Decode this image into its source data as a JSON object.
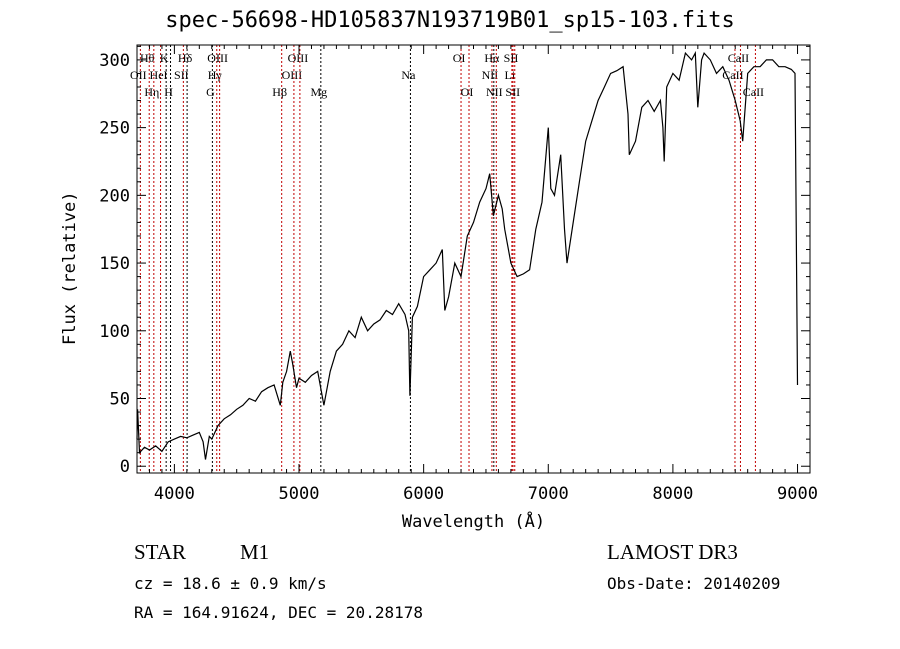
{
  "chart_data": {
    "type": "line",
    "title": "spec-56698-HD105837N193719B01_sp15-103.fits",
    "xlabel": "Wavelength (Å)",
    "ylabel": "Flux (relative)",
    "xlim": [
      3700,
      9100
    ],
    "ylim": [
      -5,
      311
    ],
    "xticks": [
      4000,
      5000,
      6000,
      7000,
      8000,
      9000
    ],
    "yticks": [
      0,
      50,
      100,
      150,
      200,
      250,
      300
    ],
    "grid": false,
    "series": [
      {
        "name": "spectrum",
        "x": [
          3700,
          3705,
          3720,
          3760,
          3800,
          3850,
          3900,
          3950,
          4000,
          4050,
          4100,
          4150,
          4200,
          4230,
          4250,
          4280,
          4300,
          4350,
          4400,
          4450,
          4500,
          4550,
          4600,
          4650,
          4700,
          4750,
          4800,
          4850,
          4870,
          4900,
          4930,
          4950,
          4980,
          5000,
          5050,
          5100,
          5150,
          5200,
          5250,
          5300,
          5350,
          5400,
          5450,
          5500,
          5550,
          5600,
          5650,
          5700,
          5750,
          5800,
          5850,
          5880,
          5890,
          5910,
          5950,
          6000,
          6050,
          6100,
          6150,
          6170,
          6200,
          6250,
          6300,
          6350,
          6400,
          6450,
          6500,
          6530,
          6560,
          6600,
          6630,
          6650,
          6700,
          6750,
          6800,
          6850,
          6900,
          6950,
          7000,
          7020,
          7050,
          7100,
          7130,
          7150,
          7200,
          7250,
          7300,
          7350,
          7400,
          7450,
          7500,
          7550,
          7600,
          7640,
          7650,
          7700,
          7750,
          7800,
          7850,
          7900,
          7920,
          7930,
          7950,
          8000,
          8050,
          8100,
          8150,
          8180,
          8200,
          8230,
          8250,
          8300,
          8350,
          8400,
          8450,
          8500,
          8540,
          8560,
          8600,
          8650,
          8700,
          8750,
          8800,
          8850,
          8900,
          8950,
          8980,
          9000
        ],
        "y": [
          20,
          42,
          10,
          14,
          12,
          15,
          11,
          18,
          20,
          22,
          21,
          23,
          25,
          18,
          5,
          22,
          20,
          30,
          35,
          38,
          42,
          45,
          50,
          48,
          55,
          58,
          60,
          45,
          62,
          70,
          85,
          75,
          58,
          65,
          62,
          67,
          70,
          45,
          70,
          85,
          90,
          100,
          95,
          110,
          100,
          105,
          108,
          115,
          112,
          120,
          112,
          100,
          52,
          110,
          118,
          140,
          145,
          150,
          160,
          115,
          125,
          150,
          140,
          170,
          180,
          195,
          205,
          216,
          185,
          200,
          190,
          175,
          150,
          140,
          142,
          145,
          175,
          195,
          250,
          205,
          200,
          230,
          175,
          150,
          180,
          210,
          240,
          255,
          270,
          280,
          290,
          292,
          295,
          260,
          230,
          240,
          265,
          270,
          262,
          270,
          250,
          225,
          280,
          290,
          285,
          305,
          300,
          305,
          265,
          300,
          305,
          300,
          290,
          295,
          285,
          270,
          255,
          240,
          290,
          295,
          295,
          300,
          300,
          295,
          295,
          293,
          290,
          60
        ]
      }
    ],
    "lines": [
      {
        "wl": 3727,
        "label": "OII",
        "row": 2,
        "color": "#c00000"
      },
      {
        "wl": 3798,
        "label": "Hθ",
        "row": 1,
        "color": "#c00000"
      },
      {
        "wl": 3835,
        "label": "Hη",
        "row": 3,
        "color": "#c00000"
      },
      {
        "wl": 3889,
        "label": "HeI",
        "row": 2,
        "color": "#c00000"
      },
      {
        "wl": 3934,
        "label": "K",
        "row": 1,
        "color": "#000000"
      },
      {
        "wl": 3969,
        "label": "H",
        "row": 3,
        "color": "#000000"
      },
      {
        "wl": 4072,
        "label": "SII",
        "row": 2,
        "color": "#c00000"
      },
      {
        "wl": 4102,
        "label": "Hδ",
        "row": 1,
        "color": "#000000"
      },
      {
        "wl": 4305,
        "label": "G",
        "row": 3,
        "color": "#000000"
      },
      {
        "wl": 4340,
        "label": "Hγ",
        "row": 2,
        "color": "#c00000"
      },
      {
        "wl": 4363,
        "label": "OIII",
        "row": 1,
        "color": "#c00000"
      },
      {
        "wl": 4861,
        "label": "Hβ",
        "row": 3,
        "color": "#c00000"
      },
      {
        "wl": 4959,
        "label": "OIII",
        "row": 2,
        "color": "#c00000"
      },
      {
        "wl": 5007,
        "label": "OIII",
        "row": 1,
        "color": "#c00000"
      },
      {
        "wl": 5175,
        "label": "Mg",
        "row": 3,
        "color": "#000000"
      },
      {
        "wl": 5894,
        "label": "Na",
        "row": 2,
        "color": "#000000"
      },
      {
        "wl": 6300,
        "label": "OI",
        "row": 1,
        "color": "#c00000"
      },
      {
        "wl": 6364,
        "label": "OI",
        "row": 3,
        "color": "#c00000"
      },
      {
        "wl": 6548,
        "label": "NII",
        "row": 2,
        "color": "#c00000"
      },
      {
        "wl": 6563,
        "label": "Hα",
        "row": 1,
        "color": "#000000"
      },
      {
        "wl": 6583,
        "label": "NII",
        "row": 3,
        "color": "#c00000"
      },
      {
        "wl": 6708,
        "label": "Li",
        "row": 2,
        "color": "#c00000"
      },
      {
        "wl": 6717,
        "label": "SII",
        "row": 1,
        "color": "#c00000"
      },
      {
        "wl": 6731,
        "label": "SII",
        "row": 3,
        "color": "#c00000"
      },
      {
        "wl": 8498,
        "label": "CaII",
        "row": 2,
        "color": "#c00000"
      },
      {
        "wl": 8542,
        "label": "CaII",
        "row": 1,
        "color": "#c00000"
      },
      {
        "wl": 8662,
        "label": "CaII",
        "row": 3,
        "color": "#c00000"
      }
    ]
  },
  "info": {
    "class": "STAR",
    "subclass": "M1",
    "cz": "cz = 18.6 ± 0.9 km/s",
    "radec": "RA = 164.91624, DEC =  20.28178",
    "survey": "LAMOST DR3",
    "obsdate": "Obs-Date: 20140209"
  }
}
